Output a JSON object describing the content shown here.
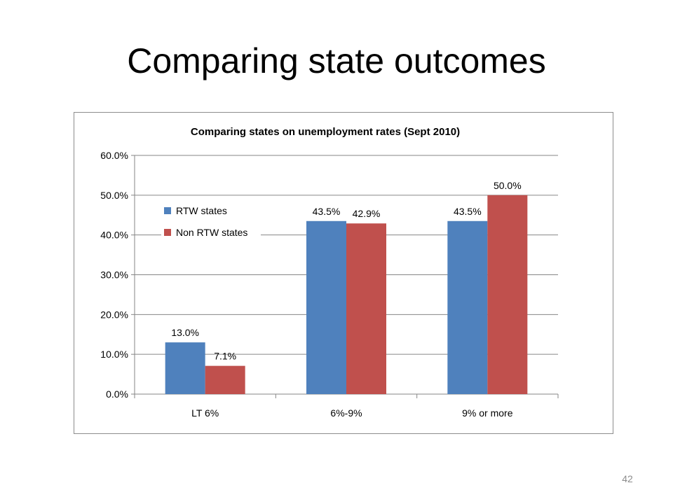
{
  "slide": {
    "title": "Comparing state outcomes",
    "page_number": "42"
  },
  "colors": {
    "rtw": "#4F81BD",
    "non_rtw": "#C0504D"
  },
  "chart_data": {
    "type": "bar",
    "title": "Comparing states on unemployment rates (Sept 2010)",
    "categories": [
      "LT 6%",
      "6%-9%",
      "9% or more"
    ],
    "series": [
      {
        "name": "RTW states",
        "values": [
          13.0,
          43.5,
          43.5
        ],
        "labels": [
          "13.0%",
          "43.5%",
          "43.5%"
        ]
      },
      {
        "name": "Non RTW states",
        "values": [
          7.1,
          42.9,
          50.0
        ],
        "labels": [
          "7.1%",
          "42.9%",
          "50.0%"
        ]
      }
    ],
    "yticks": [
      "0.0%",
      "10.0%",
      "20.0%",
      "30.0%",
      "40.0%",
      "50.0%",
      "60.0%"
    ],
    "ylim": [
      0,
      60
    ],
    "grid": true,
    "legend": "left"
  }
}
